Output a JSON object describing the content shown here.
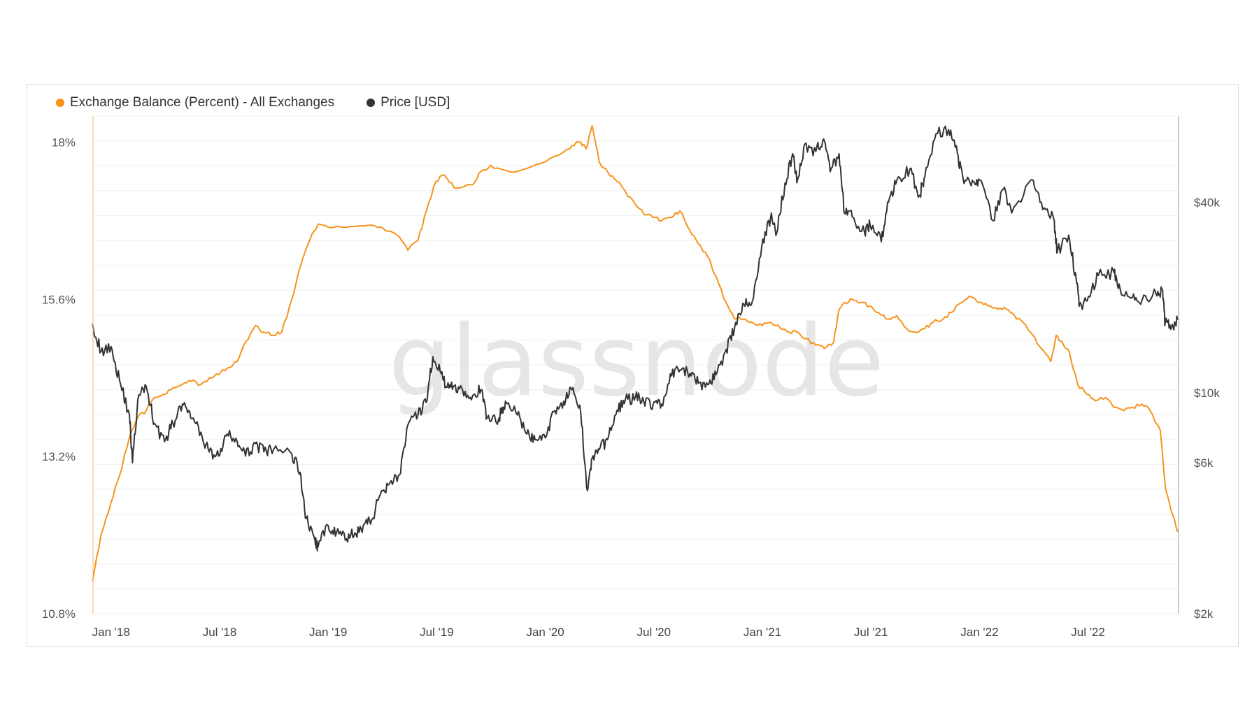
{
  "chart_data": {
    "type": "line",
    "watermark": "glassnode",
    "legend": {
      "placement": "top-left",
      "items": [
        {
          "label": "Exchange Balance (Percent) - All Exchanges",
          "color": "#f7931a"
        },
        {
          "label": "Price [USD]",
          "color": "#333333"
        }
      ]
    },
    "x_ticks": [
      "Jan '18",
      "Jul '18",
      "Jan '19",
      "Jul '19",
      "Jan '20",
      "Jul '20",
      "Jan '21",
      "Jul '21",
      "Jan '22",
      "Jul '22"
    ],
    "x_range": [
      2017.917,
      2022.917
    ],
    "left_axis": {
      "ticks": [
        "18%",
        "15.6%",
        "13.2%",
        "10.8%"
      ],
      "tick_values": [
        18,
        15.6,
        13.2,
        10.8
      ],
      "range": [
        10.8,
        18.4
      ]
    },
    "right_axis": {
      "scale": "log",
      "ticks": [
        "$40k",
        "$10k",
        "$6k",
        "$2k"
      ],
      "tick_values": [
        40000,
        10000,
        6000,
        2000
      ],
      "range": [
        2000,
        75000
      ]
    },
    "grid": "horizontal",
    "series": [
      {
        "name": "Exchange Balance (Percent) - All Exchanges",
        "axis": "left",
        "color": "#f7931a",
        "points": [
          [
            "2017-12-01",
            11.3
          ],
          [
            "2017-12-15",
            12.0
          ],
          [
            "2018-01-01",
            12.5
          ],
          [
            "2018-01-15",
            12.9
          ],
          [
            "2018-02-01",
            13.5
          ],
          [
            "2018-02-15",
            13.8
          ],
          [
            "2018-03-01",
            13.9
          ],
          [
            "2018-03-15",
            14.1
          ],
          [
            "2018-04-01",
            14.15
          ],
          [
            "2018-04-15",
            14.25
          ],
          [
            "2018-05-01",
            14.3
          ],
          [
            "2018-05-15",
            14.35
          ],
          [
            "2018-06-01",
            14.3
          ],
          [
            "2018-06-15",
            14.4
          ],
          [
            "2018-07-01",
            14.45
          ],
          [
            "2018-07-15",
            14.55
          ],
          [
            "2018-08-01",
            14.65
          ],
          [
            "2018-08-15",
            14.95
          ],
          [
            "2018-09-01",
            15.2
          ],
          [
            "2018-09-15",
            15.1
          ],
          [
            "2018-10-01",
            15.05
          ],
          [
            "2018-10-15",
            15.1
          ],
          [
            "2018-11-01",
            15.6
          ],
          [
            "2018-11-15",
            16.1
          ],
          [
            "2018-12-01",
            16.5
          ],
          [
            "2018-12-15",
            16.75
          ],
          [
            "2019-01-01",
            16.7
          ],
          [
            "2019-02-01",
            16.7
          ],
          [
            "2019-03-01",
            16.72
          ],
          [
            "2019-04-01",
            16.7
          ],
          [
            "2019-05-01",
            16.55
          ],
          [
            "2019-05-15",
            16.35
          ],
          [
            "2019-06-01",
            16.5
          ],
          [
            "2019-06-15",
            16.95
          ],
          [
            "2019-07-01",
            17.4
          ],
          [
            "2019-07-15",
            17.5
          ],
          [
            "2019-08-01",
            17.3
          ],
          [
            "2019-09-01",
            17.35
          ],
          [
            "2019-09-15",
            17.55
          ],
          [
            "2019-10-01",
            17.65
          ],
          [
            "2019-10-15",
            17.6
          ],
          [
            "2019-11-01",
            17.55
          ],
          [
            "2019-12-01",
            17.6
          ],
          [
            "2020-01-01",
            17.7
          ],
          [
            "2020-02-01",
            17.85
          ],
          [
            "2020-02-15",
            17.95
          ],
          [
            "2020-03-01",
            18.0
          ],
          [
            "2020-03-10",
            17.9
          ],
          [
            "2020-03-20",
            18.25
          ],
          [
            "2020-04-01",
            17.7
          ],
          [
            "2020-04-15",
            17.55
          ],
          [
            "2020-05-01",
            17.4
          ],
          [
            "2020-05-15",
            17.25
          ],
          [
            "2020-06-01",
            17.05
          ],
          [
            "2020-06-15",
            16.9
          ],
          [
            "2020-07-01",
            16.85
          ],
          [
            "2020-07-15",
            16.8
          ],
          [
            "2020-08-01",
            16.85
          ],
          [
            "2020-08-15",
            16.95
          ],
          [
            "2020-09-01",
            16.65
          ],
          [
            "2020-09-15",
            16.45
          ],
          [
            "2020-10-01",
            16.25
          ],
          [
            "2020-10-15",
            15.95
          ],
          [
            "2020-11-01",
            15.55
          ],
          [
            "2020-11-15",
            15.3
          ],
          [
            "2020-12-01",
            15.3
          ],
          [
            "2020-12-15",
            15.25
          ],
          [
            "2021-01-01",
            15.2
          ],
          [
            "2021-01-15",
            15.25
          ],
          [
            "2021-02-01",
            15.15
          ],
          [
            "2021-02-15",
            15.1
          ],
          [
            "2021-03-01",
            15.1
          ],
          [
            "2021-03-15",
            15.0
          ],
          [
            "2021-04-01",
            14.9
          ],
          [
            "2021-04-15",
            14.85
          ],
          [
            "2021-05-01",
            14.95
          ],
          [
            "2021-05-10",
            15.45
          ],
          [
            "2021-05-20",
            15.55
          ],
          [
            "2021-06-01",
            15.6
          ],
          [
            "2021-06-15",
            15.55
          ],
          [
            "2021-07-01",
            15.5
          ],
          [
            "2021-07-15",
            15.4
          ],
          [
            "2021-08-01",
            15.3
          ],
          [
            "2021-08-15",
            15.35
          ],
          [
            "2021-09-01",
            15.15
          ],
          [
            "2021-09-15",
            15.1
          ],
          [
            "2021-10-01",
            15.15
          ],
          [
            "2021-10-15",
            15.25
          ],
          [
            "2021-11-01",
            15.3
          ],
          [
            "2021-11-15",
            15.4
          ],
          [
            "2021-12-01",
            15.55
          ],
          [
            "2021-12-15",
            15.65
          ],
          [
            "2022-01-01",
            15.55
          ],
          [
            "2022-01-15",
            15.5
          ],
          [
            "2022-02-01",
            15.45
          ],
          [
            "2022-02-15",
            15.45
          ],
          [
            "2022-03-01",
            15.35
          ],
          [
            "2022-03-15",
            15.25
          ],
          [
            "2022-04-01",
            15.05
          ],
          [
            "2022-04-15",
            14.85
          ],
          [
            "2022-05-01",
            14.65
          ],
          [
            "2022-05-10",
            15.05
          ],
          [
            "2022-05-20",
            14.95
          ],
          [
            "2022-06-01",
            14.8
          ],
          [
            "2022-06-15",
            14.3
          ],
          [
            "2022-07-01",
            14.15
          ],
          [
            "2022-07-15",
            14.05
          ],
          [
            "2022-08-01",
            14.1
          ],
          [
            "2022-08-15",
            13.95
          ],
          [
            "2022-09-01",
            13.9
          ],
          [
            "2022-09-15",
            13.95
          ],
          [
            "2022-10-01",
            14.0
          ],
          [
            "2022-10-15",
            13.9
          ],
          [
            "2022-11-01",
            13.6
          ],
          [
            "2022-11-10",
            12.7
          ],
          [
            "2022-11-20",
            12.35
          ],
          [
            "2022-11-30",
            12.05
          ]
        ]
      },
      {
        "name": "Price [USD]",
        "axis": "right",
        "color": "#333333",
        "points": [
          [
            "2017-12-01",
            16500
          ],
          [
            "2017-12-15",
            13500
          ],
          [
            "2018-01-01",
            14000
          ],
          [
            "2018-01-15",
            11000
          ],
          [
            "2018-02-01",
            8500
          ],
          [
            "2018-02-06",
            6000
          ],
          [
            "2018-02-15",
            9500
          ],
          [
            "2018-03-01",
            10500
          ],
          [
            "2018-03-15",
            8000
          ],
          [
            "2018-04-01",
            7000
          ],
          [
            "2018-04-15",
            8000
          ],
          [
            "2018-05-01",
            9200
          ],
          [
            "2018-05-15",
            8300
          ],
          [
            "2018-06-01",
            7500
          ],
          [
            "2018-06-15",
            6500
          ],
          [
            "2018-07-01",
            6300
          ],
          [
            "2018-07-15",
            7400
          ],
          [
            "2018-08-01",
            7000
          ],
          [
            "2018-08-15",
            6300
          ],
          [
            "2018-09-01",
            6900
          ],
          [
            "2018-09-15",
            6500
          ],
          [
            "2018-10-01",
            6600
          ],
          [
            "2018-11-01",
            6400
          ],
          [
            "2018-11-15",
            5600
          ],
          [
            "2018-11-25",
            4000
          ],
          [
            "2018-12-10",
            3400
          ],
          [
            "2018-12-15",
            3250
          ],
          [
            "2019-01-01",
            3800
          ],
          [
            "2019-01-15",
            3600
          ],
          [
            "2019-02-01",
            3450
          ],
          [
            "2019-02-15",
            3600
          ],
          [
            "2019-03-01",
            3800
          ],
          [
            "2019-03-15",
            3950
          ],
          [
            "2019-04-01",
            4900
          ],
          [
            "2019-04-15",
            5200
          ],
          [
            "2019-05-01",
            5500
          ],
          [
            "2019-05-15",
            7900
          ],
          [
            "2019-06-01",
            8500
          ],
          [
            "2019-06-15",
            9300
          ],
          [
            "2019-06-26",
            13000
          ],
          [
            "2019-07-10",
            11500
          ],
          [
            "2019-07-20",
            10400
          ],
          [
            "2019-08-01",
            10500
          ],
          [
            "2019-08-15",
            10200
          ],
          [
            "2019-09-01",
            9800
          ],
          [
            "2019-09-15",
            10200
          ],
          [
            "2019-09-25",
            8300
          ],
          [
            "2019-10-15",
            8300
          ],
          [
            "2019-10-26",
            9400
          ],
          [
            "2019-11-15",
            8500
          ],
          [
            "2019-12-01",
            7400
          ],
          [
            "2019-12-15",
            7100
          ],
          [
            "2020-01-01",
            7200
          ],
          [
            "2020-01-15",
            8700
          ],
          [
            "2020-02-01",
            9400
          ],
          [
            "2020-02-15",
            10200
          ],
          [
            "2020-03-01",
            8600
          ],
          [
            "2020-03-12",
            4900
          ],
          [
            "2020-03-20",
            6200
          ],
          [
            "2020-04-01",
            6600
          ],
          [
            "2020-04-15",
            7100
          ],
          [
            "2020-05-01",
            8800
          ],
          [
            "2020-05-15",
            9500
          ],
          [
            "2020-06-01",
            9700
          ],
          [
            "2020-06-15",
            9400
          ],
          [
            "2020-07-01",
            9200
          ],
          [
            "2020-07-15",
            9200
          ],
          [
            "2020-08-01",
            11300
          ],
          [
            "2020-08-15",
            11800
          ],
          [
            "2020-09-01",
            11500
          ],
          [
            "2020-09-15",
            10700
          ],
          [
            "2020-10-01",
            10600
          ],
          [
            "2020-10-15",
            11400
          ],
          [
            "2020-11-01",
            13700
          ],
          [
            "2020-11-15",
            16000
          ],
          [
            "2020-12-01",
            19000
          ],
          [
            "2020-12-15",
            19400
          ],
          [
            "2020-12-31",
            29000
          ],
          [
            "2021-01-15",
            36000
          ],
          [
            "2021-01-25",
            32000
          ],
          [
            "2021-02-08",
            46000
          ],
          [
            "2021-02-21",
            57000
          ],
          [
            "2021-03-01",
            47000
          ],
          [
            "2021-03-13",
            61000
          ],
          [
            "2021-04-01",
            58000
          ],
          [
            "2021-04-14",
            63500
          ],
          [
            "2021-04-25",
            50000
          ],
          [
            "2021-05-10",
            57000
          ],
          [
            "2021-05-19",
            37000
          ],
          [
            "2021-06-01",
            36000
          ],
          [
            "2021-06-22",
            32000
          ],
          [
            "2021-07-01",
            34000
          ],
          [
            "2021-07-20",
            30000
          ],
          [
            "2021-08-01",
            40000
          ],
          [
            "2021-08-15",
            47000
          ],
          [
            "2021-09-06",
            51000
          ],
          [
            "2021-09-22",
            42000
          ],
          [
            "2021-10-01",
            48000
          ],
          [
            "2021-10-20",
            66000
          ],
          [
            "2021-11-10",
            68000
          ],
          [
            "2021-11-25",
            57000
          ],
          [
            "2021-12-04",
            48000
          ],
          [
            "2021-12-20",
            47000
          ],
          [
            "2022-01-01",
            47000
          ],
          [
            "2022-01-24",
            35000
          ],
          [
            "2022-02-10",
            44000
          ],
          [
            "2022-02-24",
            37000
          ],
          [
            "2022-03-28",
            47000
          ],
          [
            "2022-04-15",
            40000
          ],
          [
            "2022-05-05",
            36000
          ],
          [
            "2022-05-12",
            28000
          ],
          [
            "2022-05-31",
            31500
          ],
          [
            "2022-06-13",
            22500
          ],
          [
            "2022-06-18",
            19000
          ],
          [
            "2022-07-01",
            19500
          ],
          [
            "2022-07-20",
            23500
          ],
          [
            "2022-08-15",
            24000
          ],
          [
            "2022-08-25",
            21500
          ],
          [
            "2022-09-15",
            20000
          ],
          [
            "2022-10-01",
            19500
          ],
          [
            "2022-10-25",
            20500
          ],
          [
            "2022-11-05",
            21000
          ],
          [
            "2022-11-09",
            16500
          ],
          [
            "2022-11-20",
            16200
          ],
          [
            "2022-11-30",
            17000
          ]
        ]
      }
    ]
  }
}
